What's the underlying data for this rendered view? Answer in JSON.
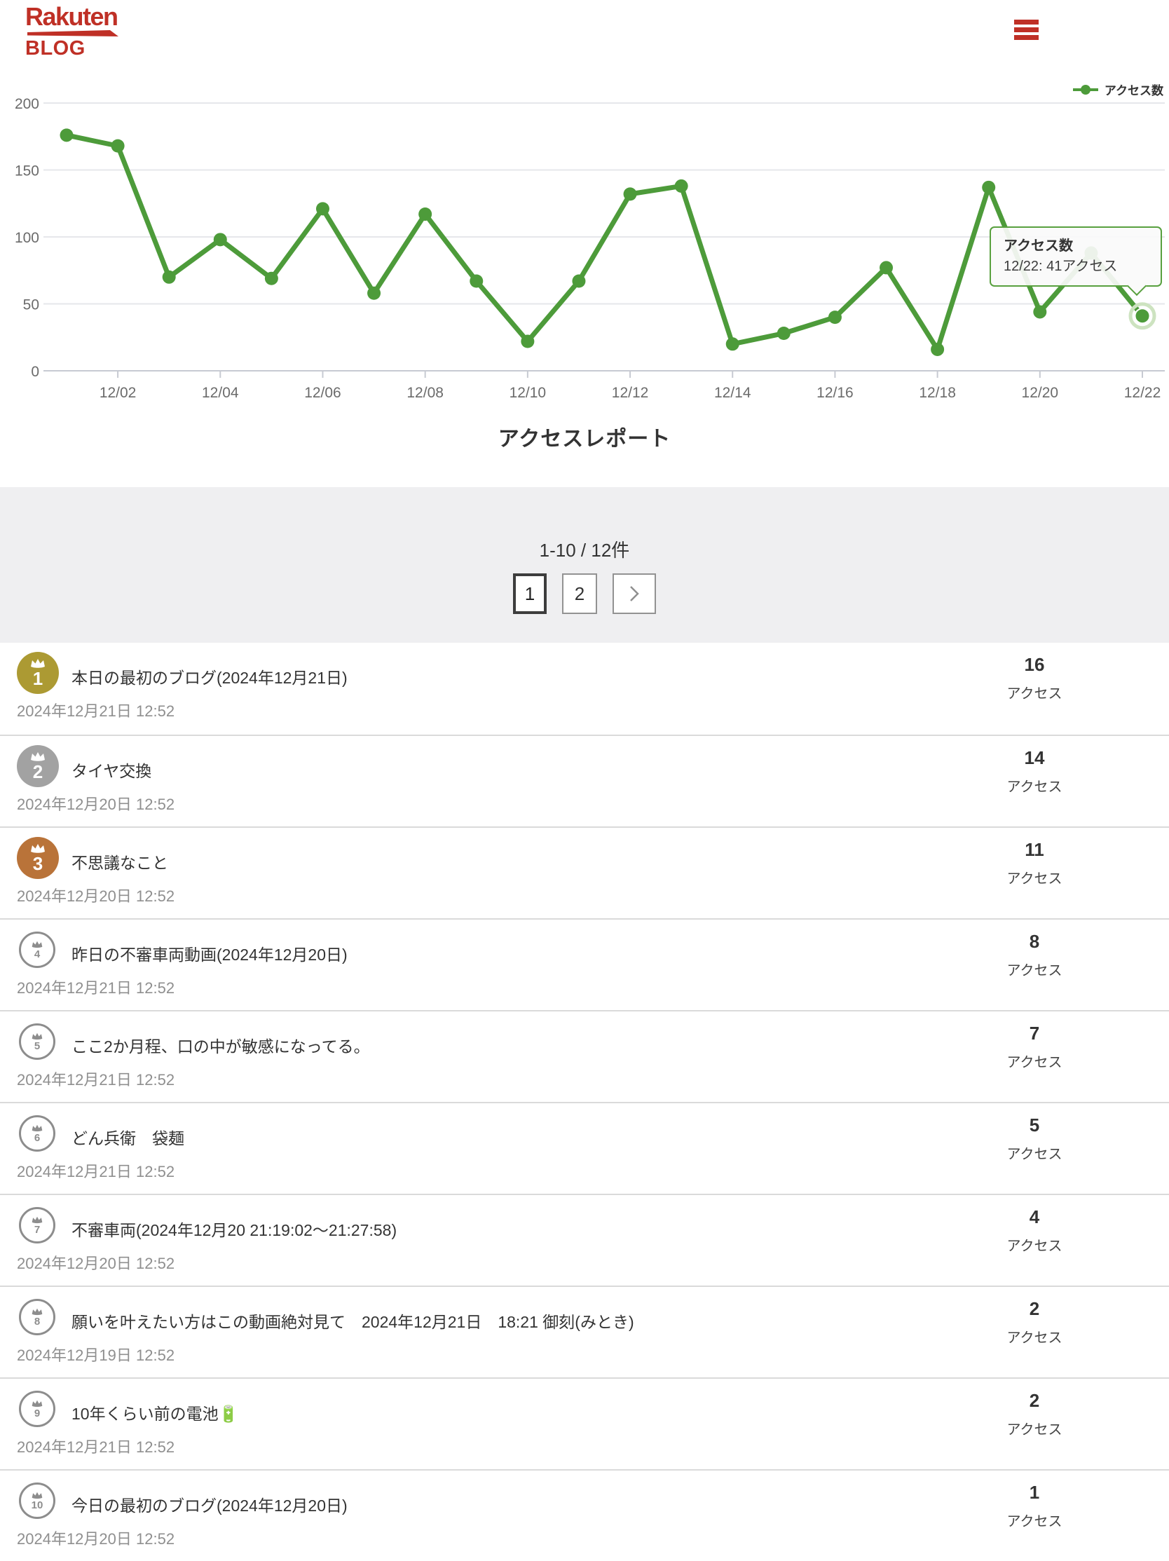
{
  "header": {
    "logo_line1": "Rakuten",
    "logo_line2": "BLOG"
  },
  "colors": {
    "brand_red": "#bf3026",
    "chart_green": "#4d9b3a",
    "badge_gold": "#ac9a33",
    "badge_silver": "#a2a2a2",
    "badge_bronze": "#b97339"
  },
  "chart_data": {
    "type": "line",
    "title": "アクセスレポート",
    "color": "#4d9b3a",
    "highlight_ring_color": "#cde3c0",
    "legend_position": "top-right",
    "grid": true,
    "ylim": [
      0,
      200
    ],
    "yticks": [
      0,
      50,
      100,
      150,
      200
    ],
    "x": [
      "12/01",
      "12/02",
      "12/03",
      "12/04",
      "12/05",
      "12/06",
      "12/07",
      "12/08",
      "12/09",
      "12/10",
      "12/11",
      "12/12",
      "12/13",
      "12/14",
      "12/15",
      "12/16",
      "12/17",
      "12/18",
      "12/19",
      "12/20",
      "12/21",
      "12/22"
    ],
    "x_tick_labels": [
      "12/02",
      "12/04",
      "12/06",
      "12/08",
      "12/10",
      "12/12",
      "12/14",
      "12/16",
      "12/18",
      "12/20",
      "12/22"
    ],
    "series": [
      {
        "name": "アクセス数",
        "values": [
          176,
          168,
          70,
          98,
          69,
          121,
          58,
          117,
          67,
          22,
          67,
          132,
          138,
          20,
          28,
          40,
          77,
          16,
          137,
          44,
          88,
          41
        ]
      }
    ],
    "highlight": {
      "x": "12/22",
      "value": 41
    },
    "tooltip": {
      "title": "アクセス数",
      "text": "12/22: 41アクセス"
    }
  },
  "pagination": {
    "summary": "1-10 / 12件",
    "pages": [
      "1",
      "2"
    ],
    "current": "1"
  },
  "ranking": {
    "access_label": "アクセス",
    "items": [
      {
        "rank": 1,
        "badge": "gold",
        "title": "本日の最初のブログ(2024年12月21日)",
        "date": "2024年12月21日 12:52",
        "count": 16
      },
      {
        "rank": 2,
        "badge": "silver",
        "title": "タイヤ交換",
        "date": "2024年12月20日 12:52",
        "count": 14
      },
      {
        "rank": 3,
        "badge": "bronze",
        "title": "不思議なこと",
        "date": "2024年12月20日 12:52",
        "count": 11
      },
      {
        "rank": 4,
        "badge": "plain",
        "title": "昨日の不審車両動画(2024年12月20日)",
        "date": "2024年12月21日 12:52",
        "count": 8
      },
      {
        "rank": 5,
        "badge": "plain",
        "title": "ここ2か月程、口の中が敏感になってる。",
        "date": "2024年12月21日 12:52",
        "count": 7
      },
      {
        "rank": 6,
        "badge": "plain",
        "title": "どん兵衛　袋麺",
        "date": "2024年12月21日 12:52",
        "count": 5
      },
      {
        "rank": 7,
        "badge": "plain",
        "title": "不審車両(2024年12月20 21:19:02〜21:27:58)",
        "date": "2024年12月20日 12:52",
        "count": 4
      },
      {
        "rank": 8,
        "badge": "plain",
        "title": "願いを叶えたい方はこの動画絶対見て　2024年12月21日　18:21 御刻(みとき)",
        "date": "2024年12月19日 12:52",
        "count": 2
      },
      {
        "rank": 9,
        "badge": "plain",
        "title": "10年くらい前の電池🔋",
        "date": "2024年12月21日 12:52",
        "count": 2
      },
      {
        "rank": 10,
        "badge": "plain",
        "title": "今日の最初のブログ(2024年12月20日)",
        "date": "2024年12月20日 12:52",
        "count": 1
      }
    ]
  }
}
